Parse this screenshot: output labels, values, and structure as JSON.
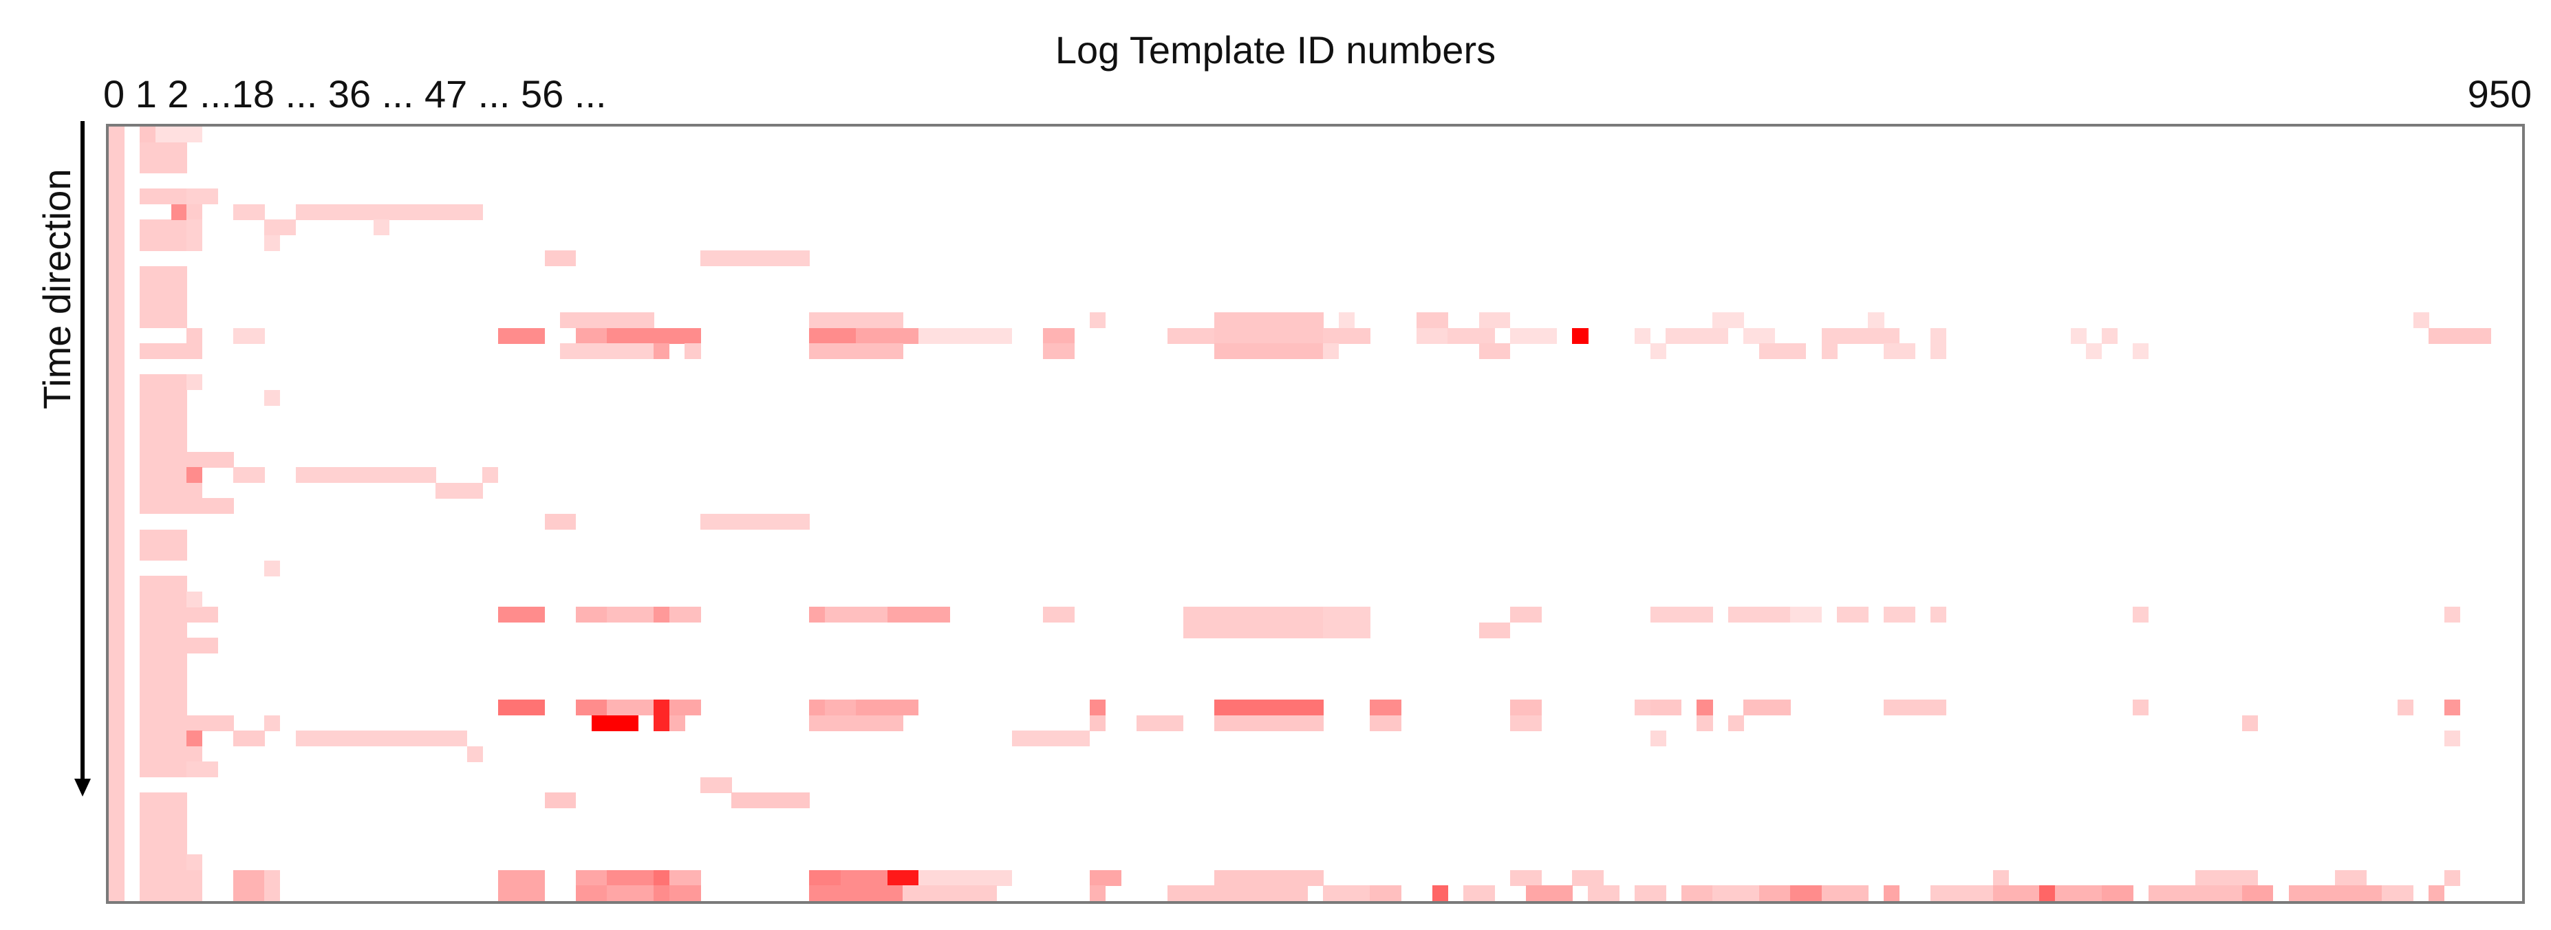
{
  "chart_data": {
    "type": "heatmap",
    "title": "Log Template ID numbers",
    "ylabel": "Time direction",
    "x_tick_labels_left": "0 1 2 ...18 ... 36 ... 47 ... 56 ...",
    "x_tick_label_right": "950",
    "grid": false,
    "color_low": "#ffffff",
    "color_high": "#ff0000",
    "n_rows": 50,
    "n_cols": 155,
    "cells": [
      [
        0,
        0,
        1,
        0.2
      ],
      [
        1,
        0,
        1,
        0.2
      ],
      [
        2,
        0,
        1,
        0.2
      ],
      [
        3,
        0,
        1,
        0.2
      ],
      [
        4,
        0,
        1,
        0.2
      ],
      [
        5,
        0,
        1,
        0.2
      ],
      [
        6,
        0,
        1,
        0.2
      ],
      [
        7,
        0,
        1,
        0.2
      ],
      [
        8,
        0,
        1,
        0.2
      ],
      [
        9,
        0,
        1,
        0.2
      ],
      [
        10,
        0,
        1,
        0.2
      ],
      [
        11,
        0,
        1,
        0.2
      ],
      [
        12,
        0,
        1,
        0.2
      ],
      [
        13,
        0,
        1,
        0.2
      ],
      [
        14,
        0,
        1,
        0.2
      ],
      [
        15,
        0,
        1,
        0.2
      ],
      [
        16,
        0,
        1,
        0.2
      ],
      [
        17,
        0,
        1,
        0.2
      ],
      [
        18,
        0,
        1,
        0.2
      ],
      [
        19,
        0,
        1,
        0.2
      ],
      [
        20,
        0,
        1,
        0.2
      ],
      [
        21,
        0,
        1,
        0.2
      ],
      [
        22,
        0,
        1,
        0.2
      ],
      [
        23,
        0,
        1,
        0.2
      ],
      [
        24,
        0,
        1,
        0.2
      ],
      [
        25,
        0,
        1,
        0.2
      ],
      [
        26,
        0,
        1,
        0.2
      ],
      [
        27,
        0,
        1,
        0.2
      ],
      [
        28,
        0,
        1,
        0.2
      ],
      [
        29,
        0,
        1,
        0.2
      ],
      [
        30,
        0,
        1,
        0.2
      ],
      [
        31,
        0,
        1,
        0.2
      ],
      [
        32,
        0,
        1,
        0.2
      ],
      [
        33,
        0,
        1,
        0.2
      ],
      [
        34,
        0,
        1,
        0.2
      ],
      [
        35,
        0,
        1,
        0.2
      ],
      [
        36,
        0,
        1,
        0.2
      ],
      [
        37,
        0,
        1,
        0.2
      ],
      [
        38,
        0,
        1,
        0.2
      ],
      [
        39,
        0,
        1,
        0.2
      ],
      [
        40,
        0,
        1,
        0.2
      ],
      [
        41,
        0,
        1,
        0.2
      ],
      [
        42,
        0,
        1,
        0.2
      ],
      [
        43,
        0,
        1,
        0.2
      ],
      [
        44,
        0,
        1,
        0.2
      ],
      [
        45,
        0,
        1,
        0.2
      ],
      [
        46,
        0,
        1,
        0.2
      ],
      [
        47,
        0,
        1,
        0.2
      ],
      [
        48,
        0,
        1,
        0.2
      ],
      [
        49,
        0,
        1,
        0.2
      ],
      [
        0,
        2,
        3,
        0.22
      ],
      [
        0,
        3,
        3,
        0.12
      ],
      [
        1,
        2,
        3,
        0.2
      ],
      [
        2,
        2,
        3,
        0.2
      ],
      [
        4,
        2,
        3,
        0.2
      ],
      [
        6,
        2,
        3,
        0.2
      ],
      [
        7,
        2,
        3,
        0.2
      ],
      [
        9,
        2,
        3,
        0.2
      ],
      [
        10,
        2,
        3,
        0.2
      ],
      [
        11,
        2,
        3,
        0.2
      ],
      [
        12,
        2,
        3,
        0.2
      ],
      [
        14,
        2,
        3,
        0.2
      ],
      [
        16,
        2,
        3,
        0.2
      ],
      [
        17,
        2,
        3,
        0.2
      ],
      [
        18,
        2,
        3,
        0.2
      ],
      [
        19,
        2,
        3,
        0.2
      ],
      [
        20,
        2,
        3,
        0.2
      ],
      [
        21,
        2,
        3,
        0.2
      ],
      [
        22,
        2,
        3,
        0.2
      ],
      [
        23,
        2,
        3,
        0.2
      ],
      [
        24,
        2,
        3,
        0.2
      ],
      [
        26,
        2,
        3,
        0.2
      ],
      [
        27,
        2,
        3,
        0.2
      ],
      [
        29,
        2,
        3,
        0.2
      ],
      [
        30,
        2,
        3,
        0.2
      ],
      [
        31,
        2,
        3,
        0.2
      ],
      [
        32,
        2,
        3,
        0.2
      ],
      [
        33,
        2,
        3,
        0.2
      ],
      [
        34,
        2,
        3,
        0.2
      ],
      [
        35,
        2,
        3,
        0.2
      ],
      [
        36,
        2,
        3,
        0.2
      ],
      [
        37,
        2,
        3,
        0.2
      ],
      [
        38,
        2,
        3,
        0.2
      ],
      [
        39,
        2,
        3,
        0.2
      ],
      [
        40,
        2,
        3,
        0.2
      ],
      [
        41,
        2,
        3,
        0.2
      ],
      [
        43,
        2,
        3,
        0.2
      ],
      [
        44,
        2,
        3,
        0.2
      ],
      [
        45,
        2,
        3,
        0.2
      ],
      [
        46,
        2,
        3,
        0.2
      ],
      [
        47,
        2,
        3,
        0.2
      ],
      [
        48,
        2,
        3,
        0.2
      ],
      [
        49,
        2,
        3,
        0.2
      ],
      [
        5,
        4,
        1,
        0.45
      ],
      [
        4,
        5,
        2,
        0.18
      ],
      [
        5,
        5,
        1,
        0.2
      ],
      [
        6,
        5,
        1,
        0.18
      ],
      [
        7,
        5,
        1,
        0.18
      ],
      [
        5,
        8,
        2,
        0.18
      ],
      [
        5,
        12,
        12,
        0.18
      ],
      [
        6,
        10,
        2,
        0.18
      ],
      [
        6,
        17,
        1,
        0.15
      ],
      [
        7,
        10,
        1,
        0.15
      ],
      [
        8,
        28,
        2,
        0.2
      ],
      [
        8,
        38,
        7,
        0.18
      ],
      [
        13,
        5,
        1,
        0.2
      ],
      [
        13,
        8,
        2,
        0.15
      ],
      [
        13,
        25,
        3,
        0.45
      ],
      [
        13,
        30,
        2,
        0.35
      ],
      [
        13,
        32,
        6,
        0.45
      ],
      [
        13,
        45,
        3,
        0.45
      ],
      [
        13,
        48,
        4,
        0.35
      ],
      [
        13,
        52,
        6,
        0.12
      ],
      [
        13,
        60,
        2,
        0.3
      ],
      [
        13,
        68,
        3,
        0.2
      ],
      [
        13,
        71,
        7,
        0.22
      ],
      [
        13,
        78,
        3,
        0.2
      ],
      [
        13,
        84,
        2,
        0.15
      ],
      [
        13,
        86,
        3,
        0.18
      ],
      [
        13,
        90,
        3,
        0.12
      ],
      [
        13,
        94,
        1,
        1.0
      ],
      [
        13,
        98,
        1,
        0.12
      ],
      [
        13,
        100,
        4,
        0.15
      ],
      [
        13,
        105,
        2,
        0.12
      ],
      [
        13,
        110,
        5,
        0.18
      ],
      [
        13,
        117,
        1,
        0.15
      ],
      [
        13,
        126,
        1,
        0.12
      ],
      [
        13,
        128,
        1,
        0.15
      ],
      [
        13,
        149,
        4,
        0.22
      ],
      [
        12,
        29,
        6,
        0.2
      ],
      [
        12,
        45,
        6,
        0.2
      ],
      [
        12,
        63,
        1,
        0.18
      ],
      [
        12,
        71,
        7,
        0.22
      ],
      [
        12,
        79,
        1,
        0.12
      ],
      [
        12,
        84,
        2,
        0.2
      ],
      [
        12,
        88,
        2,
        0.15
      ],
      [
        12,
        103,
        2,
        0.12
      ],
      [
        12,
        113,
        1,
        0.12
      ],
      [
        12,
        148,
        1,
        0.15
      ],
      [
        14,
        5,
        1,
        0.2
      ],
      [
        14,
        29,
        6,
        0.18
      ],
      [
        14,
        35,
        1,
        0.35
      ],
      [
        14,
        37,
        1,
        0.2
      ],
      [
        14,
        45,
        6,
        0.25
      ],
      [
        14,
        60,
        2,
        0.25
      ],
      [
        14,
        71,
        7,
        0.25
      ],
      [
        14,
        78,
        1,
        0.15
      ],
      [
        14,
        88,
        2,
        0.2
      ],
      [
        14,
        99,
        1,
        0.12
      ],
      [
        14,
        106,
        3,
        0.18
      ],
      [
        14,
        110,
        1,
        0.18
      ],
      [
        14,
        114,
        2,
        0.15
      ],
      [
        14,
        117,
        1,
        0.15
      ],
      [
        14,
        127,
        1,
        0.12
      ],
      [
        14,
        130,
        1,
        0.12
      ],
      [
        16,
        5,
        1,
        0.15
      ],
      [
        17,
        10,
        1,
        0.15
      ],
      [
        21,
        5,
        3,
        0.2
      ],
      [
        22,
        5,
        1,
        0.45
      ],
      [
        22,
        8,
        2,
        0.18
      ],
      [
        22,
        12,
        9,
        0.18
      ],
      [
        22,
        24,
        1,
        0.18
      ],
      [
        23,
        5,
        1,
        0.2
      ],
      [
        23,
        21,
        3,
        0.18
      ],
      [
        24,
        5,
        3,
        0.2
      ],
      [
        25,
        28,
        2,
        0.2
      ],
      [
        25,
        38,
        7,
        0.18
      ],
      [
        28,
        10,
        1,
        0.15
      ],
      [
        31,
        5,
        2,
        0.2
      ],
      [
        31,
        25,
        3,
        0.45
      ],
      [
        31,
        30,
        2,
        0.3
      ],
      [
        31,
        32,
        3,
        0.25
      ],
      [
        31,
        35,
        1,
        0.4
      ],
      [
        31,
        36,
        2,
        0.25
      ],
      [
        31,
        45,
        1,
        0.35
      ],
      [
        31,
        46,
        4,
        0.25
      ],
      [
        31,
        50,
        4,
        0.35
      ],
      [
        31,
        60,
        2,
        0.2
      ],
      [
        31,
        69,
        9,
        0.2
      ],
      [
        31,
        78,
        3,
        0.18
      ],
      [
        31,
        90,
        2,
        0.2
      ],
      [
        31,
        99,
        4,
        0.18
      ],
      [
        31,
        104,
        4,
        0.18
      ],
      [
        31,
        108,
        2,
        0.12
      ],
      [
        31,
        111,
        2,
        0.18
      ],
      [
        31,
        114,
        2,
        0.18
      ],
      [
        31,
        117,
        1,
        0.18
      ],
      [
        31,
        130,
        1,
        0.18
      ],
      [
        31,
        150,
        1,
        0.18
      ],
      [
        30,
        5,
        1,
        0.15
      ],
      [
        32,
        69,
        9,
        0.2
      ],
      [
        32,
        78,
        3,
        0.18
      ],
      [
        32,
        88,
        2,
        0.2
      ],
      [
        33,
        5,
        2,
        0.2
      ],
      [
        37,
        25,
        3,
        0.55
      ],
      [
        37,
        30,
        2,
        0.45
      ],
      [
        37,
        32,
        3,
        0.3
      ],
      [
        37,
        35,
        1,
        0.85
      ],
      [
        37,
        36,
        2,
        0.35
      ],
      [
        37,
        45,
        1,
        0.35
      ],
      [
        37,
        46,
        2,
        0.3
      ],
      [
        37,
        48,
        4,
        0.35
      ],
      [
        37,
        63,
        1,
        0.45
      ],
      [
        37,
        71,
        7,
        0.55
      ],
      [
        37,
        81,
        2,
        0.45
      ],
      [
        37,
        90,
        2,
        0.25
      ],
      [
        37,
        98,
        1,
        0.2
      ],
      [
        37,
        99,
        2,
        0.22
      ],
      [
        37,
        102,
        1,
        0.45
      ],
      [
        37,
        105,
        3,
        0.25
      ],
      [
        37,
        114,
        4,
        0.2
      ],
      [
        37,
        130,
        1,
        0.2
      ],
      [
        37,
        147,
        1,
        0.2
      ],
      [
        37,
        150,
        1,
        0.4
      ],
      [
        38,
        5,
        2,
        0.2
      ],
      [
        38,
        7,
        1,
        0.2
      ],
      [
        38,
        10,
        1,
        0.18
      ],
      [
        38,
        31,
        3,
        1.0
      ],
      [
        38,
        35,
        1,
        0.85
      ],
      [
        38,
        36,
        1,
        0.3
      ],
      [
        38,
        45,
        6,
        0.25
      ],
      [
        38,
        63,
        1,
        0.22
      ],
      [
        38,
        66,
        3,
        0.2
      ],
      [
        38,
        71,
        7,
        0.22
      ],
      [
        38,
        81,
        2,
        0.22
      ],
      [
        38,
        90,
        2,
        0.2
      ],
      [
        38,
        102,
        1,
        0.2
      ],
      [
        38,
        104,
        1,
        0.2
      ],
      [
        38,
        137,
        1,
        0.2
      ],
      [
        39,
        5,
        1,
        0.45
      ],
      [
        39,
        8,
        2,
        0.2
      ],
      [
        39,
        12,
        11,
        0.18
      ],
      [
        39,
        58,
        5,
        0.18
      ],
      [
        39,
        99,
        1,
        0.15
      ],
      [
        39,
        150,
        1,
        0.15
      ],
      [
        40,
        5,
        1,
        0.2
      ],
      [
        40,
        23,
        1,
        0.18
      ],
      [
        41,
        5,
        2,
        0.18
      ],
      [
        42,
        38,
        2,
        0.2
      ],
      [
        43,
        28,
        2,
        0.22
      ],
      [
        43,
        40,
        5,
        0.22
      ],
      [
        47,
        5,
        1,
        0.18
      ],
      [
        48,
        5,
        1,
        0.2
      ],
      [
        48,
        8,
        2,
        0.3
      ],
      [
        48,
        10,
        1,
        0.2
      ],
      [
        48,
        25,
        3,
        0.35
      ],
      [
        48,
        30,
        2,
        0.35
      ],
      [
        48,
        32,
        3,
        0.45
      ],
      [
        48,
        35,
        1,
        0.55
      ],
      [
        48,
        36,
        2,
        0.3
      ],
      [
        48,
        45,
        2,
        0.5
      ],
      [
        48,
        47,
        3,
        0.45
      ],
      [
        48,
        50,
        2,
        0.9
      ],
      [
        48,
        52,
        6,
        0.15
      ],
      [
        48,
        63,
        2,
        0.35
      ],
      [
        48,
        71,
        7,
        0.22
      ],
      [
        48,
        90,
        2,
        0.2
      ],
      [
        48,
        94,
        2,
        0.2
      ],
      [
        48,
        121,
        1,
        0.2
      ],
      [
        48,
        134,
        4,
        0.2
      ],
      [
        48,
        143,
        2,
        0.2
      ],
      [
        48,
        150,
        1,
        0.2
      ],
      [
        49,
        5,
        1,
        0.2
      ],
      [
        49,
        8,
        2,
        0.3
      ],
      [
        49,
        10,
        1,
        0.2
      ],
      [
        49,
        25,
        3,
        0.35
      ],
      [
        49,
        30,
        2,
        0.4
      ],
      [
        49,
        32,
        3,
        0.35
      ],
      [
        49,
        35,
        1,
        0.45
      ],
      [
        49,
        36,
        2,
        0.4
      ],
      [
        49,
        45,
        2,
        0.45
      ],
      [
        49,
        47,
        4,
        0.45
      ],
      [
        49,
        51,
        6,
        0.2
      ],
      [
        49,
        63,
        1,
        0.3
      ],
      [
        49,
        68,
        9,
        0.22
      ],
      [
        49,
        78,
        3,
        0.2
      ],
      [
        49,
        81,
        2,
        0.25
      ],
      [
        49,
        85,
        1,
        0.6
      ],
      [
        49,
        87,
        2,
        0.2
      ],
      [
        49,
        91,
        3,
        0.35
      ],
      [
        49,
        95,
        2,
        0.2
      ],
      [
        49,
        98,
        2,
        0.2
      ],
      [
        49,
        101,
        2,
        0.25
      ],
      [
        49,
        103,
        3,
        0.2
      ],
      [
        49,
        106,
        2,
        0.3
      ],
      [
        49,
        108,
        2,
        0.45
      ],
      [
        49,
        110,
        3,
        0.25
      ],
      [
        49,
        114,
        1,
        0.35
      ],
      [
        49,
        117,
        2,
        0.2
      ],
      [
        49,
        119,
        2,
        0.2
      ],
      [
        49,
        121,
        3,
        0.3
      ],
      [
        49,
        124,
        1,
        0.6
      ],
      [
        49,
        125,
        3,
        0.3
      ],
      [
        49,
        128,
        2,
        0.35
      ],
      [
        49,
        131,
        6,
        0.25
      ],
      [
        49,
        137,
        2,
        0.35
      ],
      [
        49,
        140,
        6,
        0.3
      ],
      [
        49,
        146,
        2,
        0.2
      ],
      [
        49,
        149,
        1,
        0.3
      ]
    ]
  }
}
